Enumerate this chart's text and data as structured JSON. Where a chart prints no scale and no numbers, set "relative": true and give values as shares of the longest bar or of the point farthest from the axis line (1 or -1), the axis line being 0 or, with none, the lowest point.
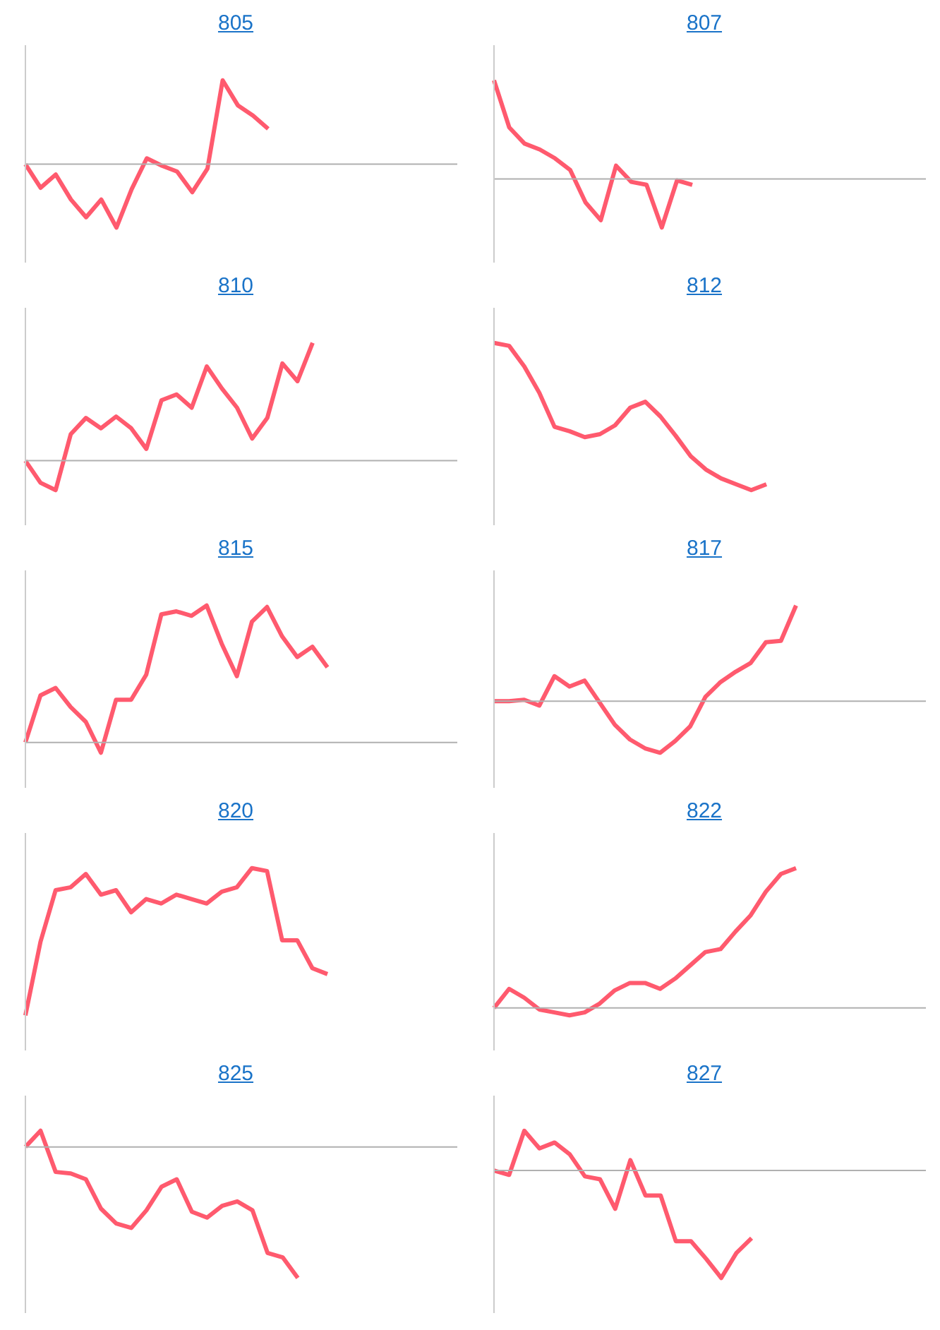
{
  "chart_data": [
    {
      "type": "line",
      "title": "805",
      "relative": true,
      "categories": [
        null,
        null,
        null,
        null,
        null,
        null,
        null,
        null,
        null,
        null,
        null,
        null,
        null,
        null,
        null,
        null,
        null
      ],
      "series": [
        {
          "color": "#ff5a6e",
          "values": [
            0.43,
            0.27,
            0.36,
            0.19,
            0.07,
            0.19,
            0,
            0.26,
            0.47,
            0.42,
            0.38,
            0.24,
            0.4,
            1,
            0.83,
            0.76,
            0.67
          ]
        }
      ],
      "ref_lines": [
        {
          "axis": "y",
          "value": 0.43,
          "color": "#b0b0b0"
        }
      ],
      "grid": false,
      "legend": false,
      "marker": "none"
    },
    {
      "type": "line",
      "title": "807",
      "relative": true,
      "categories": [
        null,
        null,
        null,
        null,
        null,
        null,
        null,
        null,
        null,
        null,
        null,
        null,
        null,
        null
      ],
      "series": [
        {
          "color": "#ff5a6e",
          "values": [
            1,
            0.68,
            0.57,
            0.53,
            0.47,
            0.39,
            0.17,
            0.05,
            0.42,
            0.31,
            0.29,
            0,
            0.32,
            0.29
          ]
        }
      ],
      "ref_lines": [
        {
          "axis": "y",
          "value": 0.33,
          "color": "#b0b0b0"
        }
      ],
      "grid": false,
      "legend": false,
      "marker": "none"
    },
    {
      "type": "line",
      "title": "810",
      "relative": true,
      "categories": [
        null,
        null,
        null,
        null,
        null,
        null,
        null,
        null,
        null,
        null,
        null,
        null,
        null,
        null,
        null,
        null,
        null,
        null,
        null,
        null
      ],
      "series": [
        {
          "color": "#ff5a6e",
          "values": [
            0.2,
            0.05,
            0,
            0.38,
            0.49,
            0.42,
            0.5,
            0.42,
            0.28,
            0.61,
            0.65,
            0.56,
            0.84,
            0.69,
            0.56,
            0.35,
            0.49,
            0.86,
            0.74,
            1
          ]
        }
      ],
      "ref_lines": [
        {
          "axis": "y",
          "value": 0.2,
          "color": "#b0b0b0"
        }
      ],
      "grid": false,
      "legend": false,
      "marker": "none"
    },
    {
      "type": "line",
      "title": "812",
      "relative": true,
      "categories": [
        null,
        null,
        null,
        null,
        null,
        null,
        null,
        null,
        null,
        null,
        null,
        null,
        null,
        null,
        null,
        null,
        null,
        null,
        null
      ],
      "series": [
        {
          "color": "#ff5a6e",
          "values": [
            1,
            0.98,
            0.84,
            0.66,
            0.43,
            0.4,
            0.36,
            0.38,
            0.44,
            0.56,
            0.6,
            0.5,
            0.37,
            0.23,
            0.14,
            0.08,
            0.04,
            0,
            0.04
          ]
        }
      ],
      "grid": false,
      "legend": false,
      "marker": "none"
    },
    {
      "type": "line",
      "title": "815",
      "relative": true,
      "categories": [
        null,
        null,
        null,
        null,
        null,
        null,
        null,
        null,
        null,
        null,
        null,
        null,
        null,
        null,
        null,
        null,
        null,
        null,
        null,
        null,
        null
      ],
      "series": [
        {
          "color": "#ff5a6e",
          "values": [
            0.07,
            0.39,
            0.44,
            0.31,
            0.21,
            0,
            0.36,
            0.36,
            0.53,
            0.94,
            0.96,
            0.93,
            1,
            0.74,
            0.52,
            0.89,
            0.99,
            0.79,
            0.65,
            0.72,
            0.58
          ]
        }
      ],
      "ref_lines": [
        {
          "axis": "y",
          "value": 0.07,
          "color": "#b0b0b0"
        }
      ],
      "grid": false,
      "legend": false,
      "marker": "none"
    },
    {
      "type": "line",
      "title": "817",
      "relative": true,
      "categories": [
        null,
        null,
        null,
        null,
        null,
        null,
        null,
        null,
        null,
        null,
        null,
        null,
        null,
        null,
        null,
        null,
        null,
        null,
        null,
        null,
        null
      ],
      "series": [
        {
          "color": "#ff5a6e",
          "values": [
            0.35,
            0.35,
            0.36,
            0.32,
            0.52,
            0.45,
            0.49,
            0.34,
            0.19,
            0.09,
            0.03,
            0,
            0.08,
            0.18,
            0.38,
            0.48,
            0.55,
            0.61,
            0.75,
            0.76,
            1
          ]
        }
      ],
      "ref_lines": [
        {
          "axis": "y",
          "value": 0.35,
          "color": "#b0b0b0"
        }
      ],
      "grid": false,
      "legend": false,
      "marker": "none"
    },
    {
      "type": "line",
      "title": "820",
      "relative": true,
      "categories": [
        null,
        null,
        null,
        null,
        null,
        null,
        null,
        null,
        null,
        null,
        null,
        null,
        null,
        null,
        null,
        null,
        null,
        null,
        null,
        null,
        null
      ],
      "series": [
        {
          "color": "#ff5a6e",
          "values": [
            0,
            0.5,
            0.85,
            0.87,
            0.96,
            0.82,
            0.85,
            0.7,
            0.79,
            0.76,
            0.82,
            0.79,
            0.76,
            0.84,
            0.87,
            1,
            0.98,
            0.51,
            0.51,
            0.32,
            0.28
          ]
        }
      ],
      "grid": false,
      "legend": false,
      "marker": "none"
    },
    {
      "type": "line",
      "title": "822",
      "relative": true,
      "categories": [
        null,
        null,
        null,
        null,
        null,
        null,
        null,
        null,
        null,
        null,
        null,
        null,
        null,
        null,
        null,
        null,
        null,
        null,
        null,
        null,
        null
      ],
      "series": [
        {
          "color": "#ff5a6e",
          "values": [
            0.05,
            0.18,
            0.12,
            0.04,
            0.02,
            0,
            0.02,
            0.08,
            0.17,
            0.22,
            0.22,
            0.18,
            0.25,
            0.34,
            0.43,
            0.45,
            0.57,
            0.68,
            0.84,
            0.96,
            1
          ]
        }
      ],
      "ref_lines": [
        {
          "axis": "y",
          "value": 0.05,
          "color": "#b0b0b0"
        }
      ],
      "grid": false,
      "legend": false,
      "marker": "none"
    },
    {
      "type": "line",
      "title": "825",
      "relative": true,
      "categories": [
        null,
        null,
        null,
        null,
        null,
        null,
        null,
        null,
        null,
        null,
        null,
        null,
        null,
        null,
        null,
        null,
        null,
        null,
        null
      ],
      "series": [
        {
          "color": "#ff5a6e",
          "values": [
            0.89,
            1,
            0.72,
            0.71,
            0.67,
            0.47,
            0.37,
            0.34,
            0.46,
            0.62,
            0.67,
            0.45,
            0.41,
            0.49,
            0.52,
            0.46,
            0.17,
            0.14,
            0
          ]
        }
      ],
      "ref_lines": [
        {
          "axis": "y",
          "value": 0.89,
          "color": "#b0b0b0"
        }
      ],
      "grid": false,
      "legend": false,
      "marker": "none"
    },
    {
      "type": "line",
      "title": "827",
      "relative": true,
      "categories": [
        null,
        null,
        null,
        null,
        null,
        null,
        null,
        null,
        null,
        null,
        null,
        null,
        null,
        null,
        null,
        null,
        null,
        null
      ],
      "series": [
        {
          "color": "#ff5a6e",
          "values": [
            0.73,
            0.7,
            1,
            0.88,
            0.92,
            0.84,
            0.69,
            0.67,
            0.47,
            0.8,
            0.56,
            0.56,
            0.25,
            0.25,
            0.13,
            0,
            0.17,
            0.27
          ]
        }
      ],
      "ref_lines": [
        {
          "axis": "y",
          "value": 0.73,
          "color": "#b0b0b0"
        }
      ],
      "grid": false,
      "legend": false,
      "marker": "none"
    }
  ]
}
